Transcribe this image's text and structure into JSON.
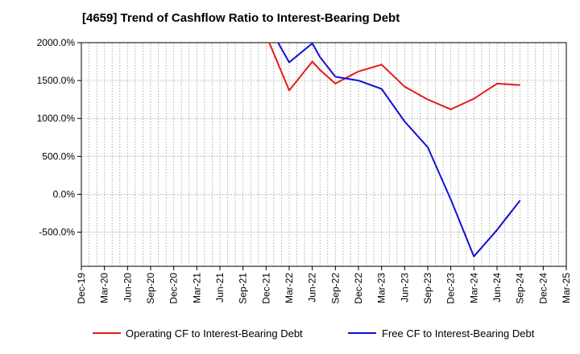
{
  "chart_data": {
    "type": "line",
    "title": "[4659]  Trend of Cashflow Ratio to Interest-Bearing Debt",
    "xlabel": "",
    "ylabel": "",
    "x_categories": [
      "Dec-19",
      "Mar-20",
      "Jun-20",
      "Sep-20",
      "Dec-20",
      "Mar-21",
      "Jun-21",
      "Sep-21",
      "Dec-21",
      "Mar-22",
      "Jun-22",
      "Sep-22",
      "Dec-22",
      "Mar-23",
      "Jun-23",
      "Sep-23",
      "Dec-23",
      "Mar-24",
      "Jun-24",
      "Sep-24",
      "Dec-24",
      "Mar-25"
    ],
    "y_ticks": [
      2000,
      1500,
      1000,
      500,
      0,
      -500
    ],
    "y_tick_labels": [
      "2000.0%",
      "1500.0%",
      "1000.0%",
      "500.0%",
      "0.0%",
      "-500.0%"
    ],
    "ylim": [
      -950,
      2000
    ],
    "grid": true,
    "legend_position": "bottom",
    "series": [
      {
        "name": "Operating CF to Interest-Bearing Debt",
        "color": "#e31a1c",
        "points": [
          [
            "Dec-21",
            2100
          ],
          [
            "Mar-22",
            1370
          ],
          [
            "Jun-22",
            1750
          ],
          [
            "Jul-22",
            1640
          ],
          [
            "Sep-22",
            1460
          ],
          [
            "Dec-22",
            1620
          ],
          [
            "Mar-23",
            1710
          ],
          [
            "Jun-23",
            1420
          ],
          [
            "Sep-23",
            1250
          ],
          [
            "Dec-23",
            1120
          ],
          [
            "Mar-24",
            1260
          ],
          [
            "Jun-24",
            1460
          ],
          [
            "Sep-24",
            1440
          ]
        ]
      },
      {
        "name": "Free CF to Interest-Bearing Debt",
        "color": "#1010d8",
        "points": [
          [
            "Jan-22",
            2100
          ],
          [
            "Mar-22",
            1740
          ],
          [
            "Jun-22",
            1990
          ],
          [
            "Jul-22",
            1810
          ],
          [
            "Sep-22",
            1550
          ],
          [
            "Dec-22",
            1500
          ],
          [
            "Mar-23",
            1390
          ],
          [
            "Jun-23",
            960
          ],
          [
            "Sep-23",
            620
          ],
          [
            "Dec-23",
            -70
          ],
          [
            "Mar-24",
            -820
          ],
          [
            "Jun-24",
            -470
          ],
          [
            "Sep-24",
            -80
          ]
        ]
      }
    ]
  }
}
